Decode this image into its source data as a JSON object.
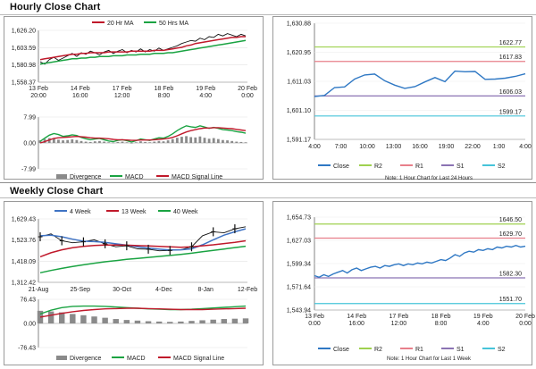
{
  "page": {
    "hourly_title": "Hourly Close Chart",
    "weekly_title": "Weekly Close Chart"
  },
  "colors": {
    "price": "#111111",
    "ma_short": "#c0192b",
    "ma_long": "#1aa342",
    "close": "#2f78c4",
    "r2": "#9fd14f",
    "r1": "#e87f8a",
    "s1": "#8b73b3",
    "s2": "#46c4da",
    "macd": "#1aa342",
    "signal": "#c0192b",
    "divergence": "#8a8a8a",
    "wk4": "#3f73c4"
  },
  "chart_data": [
    {
      "id": "hourly-price",
      "type": "line",
      "legend": [
        "20 Hr MA",
        "50 Hrs MA"
      ],
      "yticks": [
        "1,626.20",
        "1,603.59",
        "1,580.98",
        "1,558.37"
      ],
      "ylim": [
        1558.37,
        1626.2
      ],
      "xticks": [
        [
          "13 Feb",
          "20:00"
        ],
        [
          "14 Feb",
          "16:00"
        ],
        [
          "17 Feb",
          "12:00"
        ],
        [
          "18 Feb",
          "8:00"
        ],
        [
          "19 Feb",
          "4:00"
        ],
        [
          "20 Feb",
          "0:00"
        ]
      ],
      "series": [
        {
          "name": "Price",
          "values": [
            1585,
            1582,
            1588,
            1591,
            1587,
            1590,
            1593,
            1596,
            1592,
            1597,
            1595,
            1599,
            1597,
            1594,
            1598,
            1600,
            1596,
            1599,
            1601,
            1597,
            1600,
            1598,
            1602,
            1598,
            1601,
            1599,
            1603,
            1600,
            1602,
            1604,
            1606,
            1609,
            1611,
            1613,
            1612,
            1616,
            1614,
            1618,
            1617,
            1621,
            1619,
            1622,
            1620,
            1618,
            1621,
            1619
          ]
        },
        {
          "name": "20 Hr MA",
          "values": [
            1588,
            1589,
            1590,
            1591,
            1592,
            1593,
            1594,
            1595,
            1595,
            1596,
            1596,
            1597,
            1597,
            1597,
            1597,
            1598,
            1598,
            1598,
            1598,
            1598,
            1599,
            1599,
            1599,
            1599,
            1599,
            1600,
            1600,
            1600,
            1601,
            1602,
            1603,
            1604,
            1606,
            1607,
            1609,
            1610,
            1611,
            1612,
            1613,
            1614,
            1615,
            1616,
            1617,
            1617,
            1618,
            1618
          ]
        },
        {
          "name": "50 Hrs MA",
          "values": [
            1582,
            1583,
            1584,
            1585,
            1586,
            1587,
            1588,
            1589,
            1589,
            1590,
            1590,
            1591,
            1591,
            1592,
            1592,
            1592,
            1593,
            1593,
            1593,
            1594,
            1594,
            1594,
            1595,
            1595,
            1595,
            1596,
            1596,
            1596,
            1597,
            1597,
            1598,
            1599,
            1600,
            1601,
            1602,
            1603,
            1604,
            1605,
            1606,
            1607,
            1608,
            1609,
            1610,
            1611,
            1612,
            1613
          ]
        }
      ]
    },
    {
      "id": "hourly-macd",
      "type": "line",
      "legend": [
        "Divergence",
        "MACD",
        "MACD Signal Line"
      ],
      "yticks": [
        "7.99",
        "0.00",
        "-7.99"
      ],
      "ylim": [
        -7.99,
        7.99
      ],
      "series": [
        {
          "name": "Divergence",
          "values": [
            0.8,
            1.2,
            1.5,
            1.3,
            1.0,
            0.8,
            0.9,
            1.1,
            0.9,
            0.6,
            0.4,
            0.3,
            0.5,
            0.6,
            0.4,
            0.2,
            0.1,
            0.3,
            0.4,
            0.2,
            -0.1,
            0.2,
            0.5,
            0.3,
            0.2,
            0.4,
            0.6,
            0.5,
            0.8,
            1.2,
            1.6,
            1.9,
            2.1,
            1.8,
            1.7,
            2.0,
            1.6,
            1.3,
            1.5,
            1.2,
            0.9,
            0.8,
            0.6,
            0.4,
            0.3,
            0.2
          ]
        },
        {
          "name": "MACD",
          "values": [
            0.5,
            1.5,
            2.4,
            2.9,
            2.6,
            2.0,
            2.2,
            2.5,
            2.3,
            1.7,
            1.3,
            1.0,
            1.2,
            1.4,
            1.0,
            0.6,
            0.4,
            0.8,
            1.0,
            0.7,
            0.3,
            0.7,
            1.2,
            1.0,
            0.8,
            1.2,
            1.6,
            1.5,
            2.0,
            2.8,
            3.8,
            4.6,
            5.3,
            5.0,
            4.8,
            5.3,
            4.9,
            4.5,
            4.8,
            4.5,
            4.1,
            4.0,
            3.8,
            3.5,
            3.3,
            3.0
          ]
        },
        {
          "name": "MACD Signal Line",
          "values": [
            0.0,
            0.4,
            0.9,
            1.4,
            1.6,
            1.7,
            1.8,
            1.9,
            2.0,
            1.9,
            1.8,
            1.6,
            1.5,
            1.5,
            1.4,
            1.3,
            1.1,
            1.0,
            1.0,
            0.9,
            0.8,
            0.8,
            0.9,
            0.9,
            0.9,
            1.0,
            1.1,
            1.2,
            1.4,
            1.7,
            2.2,
            2.8,
            3.4,
            3.8,
            4.1,
            4.4,
            4.6,
            4.6,
            4.7,
            4.7,
            4.6,
            4.5,
            4.4,
            4.2,
            4.0,
            3.8
          ]
        }
      ]
    },
    {
      "id": "hourly-close",
      "type": "line",
      "yticks": [
        "1,630.88",
        "1,620.95",
        "1,611.03",
        "1,601.10",
        "1,591.17"
      ],
      "ylim": [
        1591.17,
        1630.88
      ],
      "xticks": [
        "4:00",
        "7:00",
        "10:00",
        "13:00",
        "16:00",
        "19:00",
        "22:00",
        "1:00",
        "4:00"
      ],
      "legend": [
        "Close",
        "R2",
        "R1",
        "S1",
        "S2"
      ],
      "note": "Note: 1 Hour Chart for Last 24 Hours",
      "levels": [
        {
          "name": "R2",
          "value": 1622.77,
          "label": "1622.77"
        },
        {
          "name": "R1",
          "value": 1617.83,
          "label": "1617.83"
        },
        {
          "name": "S1",
          "value": 1606.03,
          "label": "1606.03"
        },
        {
          "name": "S2",
          "value": 1599.17,
          "label": "1599.17"
        }
      ],
      "close": [
        1605.8,
        1606.2,
        1608.9,
        1609.1,
        1611.8,
        1613.2,
        1613.5,
        1611.2,
        1609.7,
        1608.6,
        1609.2,
        1610.8,
        1612.3,
        1610.9,
        1614.5,
        1614.3,
        1614.4,
        1611.7,
        1611.8,
        1612.1,
        1612.7,
        1613.6
      ]
    },
    {
      "id": "weekly-price",
      "type": "line",
      "legend": [
        "4 Week",
        "13 Week",
        "40 Week"
      ],
      "yticks": [
        "1,629.43",
        "1,523.76",
        "1,418.09",
        "1,312.42"
      ],
      "ylim": [
        1312.42,
        1629.43
      ],
      "xticks": [
        "21-Aug",
        "25-Sep",
        "30-Oct",
        "4-Dec",
        "8-Jan",
        "12-Feb"
      ],
      "series": [
        {
          "name": "Price",
          "values": [
            1540,
            1555,
            1520,
            1510,
            1515,
            1525,
            1505,
            1490,
            1495,
            1480,
            1478,
            1470,
            1472,
            1475,
            1490,
            1545,
            1565,
            1560,
            1580,
            1590
          ]
        },
        {
          "name": "4 Week",
          "values": [
            1545,
            1548,
            1540,
            1528,
            1518,
            1516,
            1512,
            1505,
            1498,
            1490,
            1483,
            1478,
            1474,
            1475,
            1480,
            1500,
            1525,
            1548,
            1565,
            1580
          ]
        },
        {
          "name": "13 Week",
          "values": [
            1440,
            1460,
            1475,
            1485,
            1492,
            1497,
            1499,
            1499,
            1498,
            1496,
            1494,
            1492,
            1490,
            1488,
            1490,
            1495,
            1500,
            1506,
            1512,
            1520
          ]
        },
        {
          "name": "40 Week",
          "values": [
            1360,
            1372,
            1382,
            1392,
            1400,
            1408,
            1415,
            1421,
            1427,
            1432,
            1437,
            1442,
            1447,
            1452,
            1458,
            1465,
            1472,
            1479,
            1486,
            1493
          ]
        }
      ]
    },
    {
      "id": "weekly-macd",
      "type": "line",
      "legend": [
        "Divergence",
        "MACD",
        "MACD Signal Line"
      ],
      "yticks": [
        "76.43",
        "0.00",
        "-76.43"
      ],
      "ylim": [
        -76.43,
        76.43
      ],
      "series": [
        {
          "name": "Divergence",
          "values": [
            40,
            38,
            35,
            30,
            26,
            22,
            18,
            14,
            11,
            9,
            7,
            6,
            5,
            6,
            8,
            10,
            12,
            14,
            15,
            16
          ]
        },
        {
          "name": "MACD",
          "values": [
            30,
            42,
            50,
            54,
            55,
            55,
            54,
            52,
            50,
            48,
            46,
            45,
            44,
            44,
            45,
            47,
            49,
            51,
            53,
            55
          ]
        },
        {
          "name": "MACD Signal Line",
          "values": [
            20,
            26,
            32,
            37,
            41,
            44,
            46,
            47,
            48,
            48,
            47,
            46,
            45,
            44,
            44,
            44,
            45,
            46,
            47,
            48
          ]
        }
      ]
    },
    {
      "id": "weekly-close",
      "type": "line",
      "yticks": [
        "1,654.73",
        "1,627.03",
        "1,599.34",
        "1,571.64",
        "1,543.94"
      ],
      "ylim": [
        1543.94,
        1654.73
      ],
      "xticks": [
        [
          "13 Feb",
          "0:00"
        ],
        [
          "14 Feb",
          "16:00"
        ],
        [
          "17 Feb",
          "12:00"
        ],
        [
          "18 Feb",
          "8:00"
        ],
        [
          "19 Feb",
          "4:00"
        ],
        [
          "20 Feb",
          "0:00"
        ]
      ],
      "legend": [
        "Close",
        "R2",
        "R1",
        "S1",
        "S2"
      ],
      "note": "Note: 1 Hour Chart for Last 1 Week",
      "levels": [
        {
          "name": "R2",
          "value": 1646.5,
          "label": "1646.50"
        },
        {
          "name": "R1",
          "value": 1629.7,
          "label": "1629.70"
        },
        {
          "name": "S1",
          "value": 1582.3,
          "label": "1582.30"
        },
        {
          "name": "S2",
          "value": 1551.7,
          "label": "1551.70"
        }
      ],
      "close": [
        1585,
        1583,
        1586,
        1584,
        1587,
        1589,
        1591,
        1588,
        1592,
        1594,
        1591,
        1593,
        1595,
        1596,
        1594,
        1597,
        1596,
        1598,
        1599,
        1597,
        1599,
        1598,
        1600,
        1599,
        1601,
        1600,
        1602,
        1604,
        1603,
        1606,
        1610,
        1608,
        1612,
        1614,
        1613,
        1616,
        1615,
        1617,
        1616,
        1619,
        1618,
        1620,
        1619,
        1621,
        1619,
        1620
      ]
    }
  ]
}
